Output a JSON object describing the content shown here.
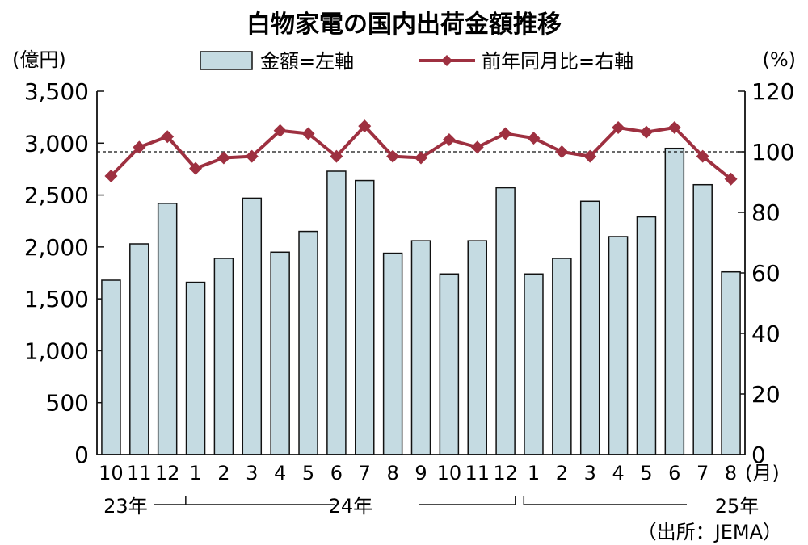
{
  "chart_data": {
    "type": "bar+line",
    "title": "白物家電の国内出荷金額推移",
    "left_axis_unit": "(億円)",
    "right_axis_unit": "(%)",
    "month_unit": "(月)",
    "source": "（出所：JEMA）",
    "legend": {
      "bar": "金額=左軸",
      "line": "前年同月比=右軸",
      "position": "top"
    },
    "categories": [
      "10",
      "11",
      "12",
      "1",
      "2",
      "3",
      "4",
      "5",
      "6",
      "7",
      "8",
      "9",
      "10",
      "11",
      "12",
      "1",
      "2",
      "3",
      "4",
      "5",
      "6",
      "7",
      "8"
    ],
    "years": [
      {
        "label": "23年",
        "start": 0,
        "end": 2
      },
      {
        "label": "24年",
        "start": 3,
        "end": 14
      },
      {
        "label": "25年",
        "start": 15,
        "end": 22
      }
    ],
    "series": [
      {
        "name": "金額=左軸",
        "kind": "bar",
        "axis": "left",
        "color": "#c5dbe2",
        "values": [
          1680,
          2030,
          2420,
          1660,
          1890,
          2470,
          1950,
          2150,
          2730,
          2640,
          1940,
          2060,
          1740,
          2060,
          2570,
          1740,
          1890,
          2440,
          2100,
          2290,
          2950,
          2600,
          1760
        ]
      },
      {
        "name": "前年同月比=右軸",
        "kind": "line",
        "axis": "right",
        "color": "#9e3040",
        "values": [
          92,
          101.5,
          105,
          94.5,
          98,
          98.5,
          107,
          106,
          98.5,
          108.5,
          98.5,
          98,
          104,
          101.5,
          106,
          104.5,
          100,
          98.5,
          108,
          106.5,
          108,
          98.5,
          91
        ]
      }
    ],
    "left_ylim": [
      0,
      3500
    ],
    "left_ticks": [
      "0",
      "500",
      "1,000",
      "1,500",
      "2,000",
      "2,500",
      "3,000",
      "3,500"
    ],
    "right_ylim": [
      0,
      120
    ],
    "right_ticks": [
      "0",
      "20",
      "40",
      "60",
      "80",
      "100",
      "120"
    ],
    "reference_line": 100,
    "grid": false
  }
}
